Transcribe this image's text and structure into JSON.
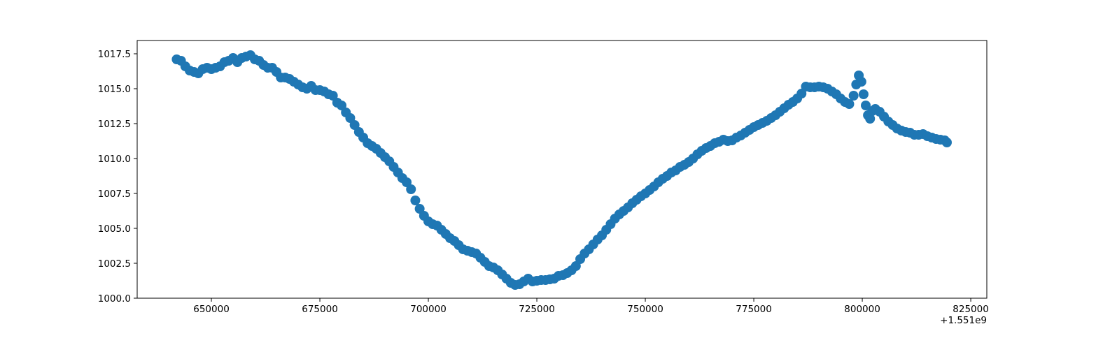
{
  "chart_data": {
    "type": "scatter",
    "color": "#1f77b4",
    "x_offset_label": "+1.551e9",
    "xlim": [
      632900,
      828700
    ],
    "ylim": [
      1000,
      1018.45
    ],
    "xticks": [
      650000,
      675000,
      700000,
      725000,
      750000,
      775000,
      800000,
      825000
    ],
    "yticks": [
      {
        "value": 1000,
        "label": "1000.0"
      },
      1002.5,
      {
        "value": 1005,
        "label": "1005.0"
      },
      1007.5,
      {
        "value": 1010,
        "label": "1010.0"
      },
      1012.5,
      {
        "value": 1015,
        "label": "1015.0"
      },
      1017.5
    ],
    "x": [
      642000,
      643000,
      644000,
      645000,
      646000,
      647000,
      648000,
      649000,
      650000,
      651000,
      652000,
      653000,
      654000,
      655000,
      656000,
      657000,
      658000,
      659000,
      660000,
      661000,
      662000,
      663000,
      664000,
      665000,
      666000,
      667000,
      668000,
      669000,
      670000,
      671000,
      672000,
      673000,
      674000,
      675000,
      676000,
      677000,
      678000,
      679000,
      680000,
      681000,
      682000,
      683000,
      684000,
      685000,
      686000,
      687000,
      688000,
      689000,
      690000,
      691000,
      692000,
      693000,
      694000,
      695000,
      696000,
      697000,
      698000,
      699000,
      700000,
      701000,
      702000,
      703000,
      704000,
      705000,
      706000,
      707000,
      708000,
      709000,
      710000,
      711000,
      712000,
      713000,
      714000,
      715000,
      716000,
      717000,
      718000,
      719000,
      720000,
      721000,
      722000,
      723000,
      724000,
      725000,
      726000,
      727000,
      728000,
      729000,
      730000,
      731000,
      732000,
      733000,
      734000,
      735000,
      736000,
      737000,
      738000,
      739000,
      740000,
      741000,
      742000,
      743000,
      744000,
      745000,
      746000,
      747000,
      748000,
      749000,
      750000,
      751000,
      752000,
      753000,
      754000,
      755000,
      756000,
      757000,
      758000,
      759000,
      760000,
      761000,
      762000,
      763000,
      764000,
      765000,
      766000,
      767000,
      768000,
      769000,
      770000,
      771000,
      772000,
      773000,
      774000,
      775000,
      776000,
      777000,
      778000,
      779000,
      780000,
      781000,
      782000,
      783000,
      784000,
      785000,
      786000,
      787000,
      788000,
      789000,
      790000,
      791000,
      792000,
      793000,
      794000,
      795000,
      796000,
      797000,
      798000,
      798600,
      799200,
      799800,
      800300,
      800800,
      801300,
      801800,
      802300,
      803000,
      804000,
      805000,
      806000,
      807000,
      808000,
      809000,
      810000,
      811000,
      812000,
      813000,
      814000,
      815000,
      816000,
      817000,
      818000,
      819000,
      819500
    ],
    "values": [
      1017.1,
      1017.0,
      1016.6,
      1016.3,
      1016.2,
      1016.1,
      1016.4,
      1016.5,
      1016.4,
      1016.5,
      1016.6,
      1016.9,
      1017.0,
      1017.2,
      1016.9,
      1017.2,
      1017.3,
      1017.4,
      1017.1,
      1017.0,
      1016.7,
      1016.5,
      1016.5,
      1016.2,
      1015.8,
      1015.8,
      1015.7,
      1015.5,
      1015.3,
      1015.1,
      1015.0,
      1015.2,
      1014.9,
      1014.9,
      1014.8,
      1014.6,
      1014.5,
      1014.0,
      1013.8,
      1013.3,
      1012.9,
      1012.4,
      1011.9,
      1011.5,
      1011.1,
      1010.9,
      1010.7,
      1010.4,
      1010.1,
      1009.8,
      1009.4,
      1009.0,
      1008.6,
      1008.3,
      1007.8,
      1007.0,
      1006.4,
      1005.9,
      1005.5,
      1005.3,
      1005.2,
      1004.9,
      1004.6,
      1004.3,
      1004.1,
      1003.8,
      1003.5,
      1003.4,
      1003.3,
      1003.2,
      1002.9,
      1002.6,
      1002.3,
      1002.2,
      1002.0,
      1001.7,
      1001.4,
      1001.1,
      1000.95,
      1001.0,
      1001.2,
      1001.4,
      1001.2,
      1001.25,
      1001.3,
      1001.3,
      1001.35,
      1001.4,
      1001.6,
      1001.65,
      1001.8,
      1002.0,
      1002.3,
      1002.8,
      1003.2,
      1003.5,
      1003.85,
      1004.2,
      1004.5,
      1004.9,
      1005.3,
      1005.7,
      1006.0,
      1006.25,
      1006.5,
      1006.8,
      1007.05,
      1007.3,
      1007.5,
      1007.75,
      1008.0,
      1008.3,
      1008.55,
      1008.75,
      1009.0,
      1009.15,
      1009.4,
      1009.55,
      1009.75,
      1010.0,
      1010.3,
      1010.55,
      1010.75,
      1010.9,
      1011.1,
      1011.2,
      1011.35,
      1011.25,
      1011.3,
      1011.5,
      1011.65,
      1011.85,
      1012.05,
      1012.25,
      1012.4,
      1012.55,
      1012.7,
      1012.9,
      1013.1,
      1013.35,
      1013.6,
      1013.85,
      1014.05,
      1014.3,
      1014.65,
      1015.15,
      1015.1,
      1015.1,
      1015.15,
      1015.1,
      1015.0,
      1014.8,
      1014.6,
      1014.3,
      1014.05,
      1013.9,
      1014.5,
      1015.3,
      1015.95,
      1015.5,
      1014.6,
      1013.8,
      1013.1,
      1012.85,
      1013.4,
      1013.55,
      1013.35,
      1013.0,
      1012.65,
      1012.4,
      1012.15,
      1012.0,
      1011.9,
      1011.85,
      1011.7,
      1011.7,
      1011.75,
      1011.6,
      1011.5,
      1011.4,
      1011.35,
      1011.3,
      1011.15
    ]
  }
}
